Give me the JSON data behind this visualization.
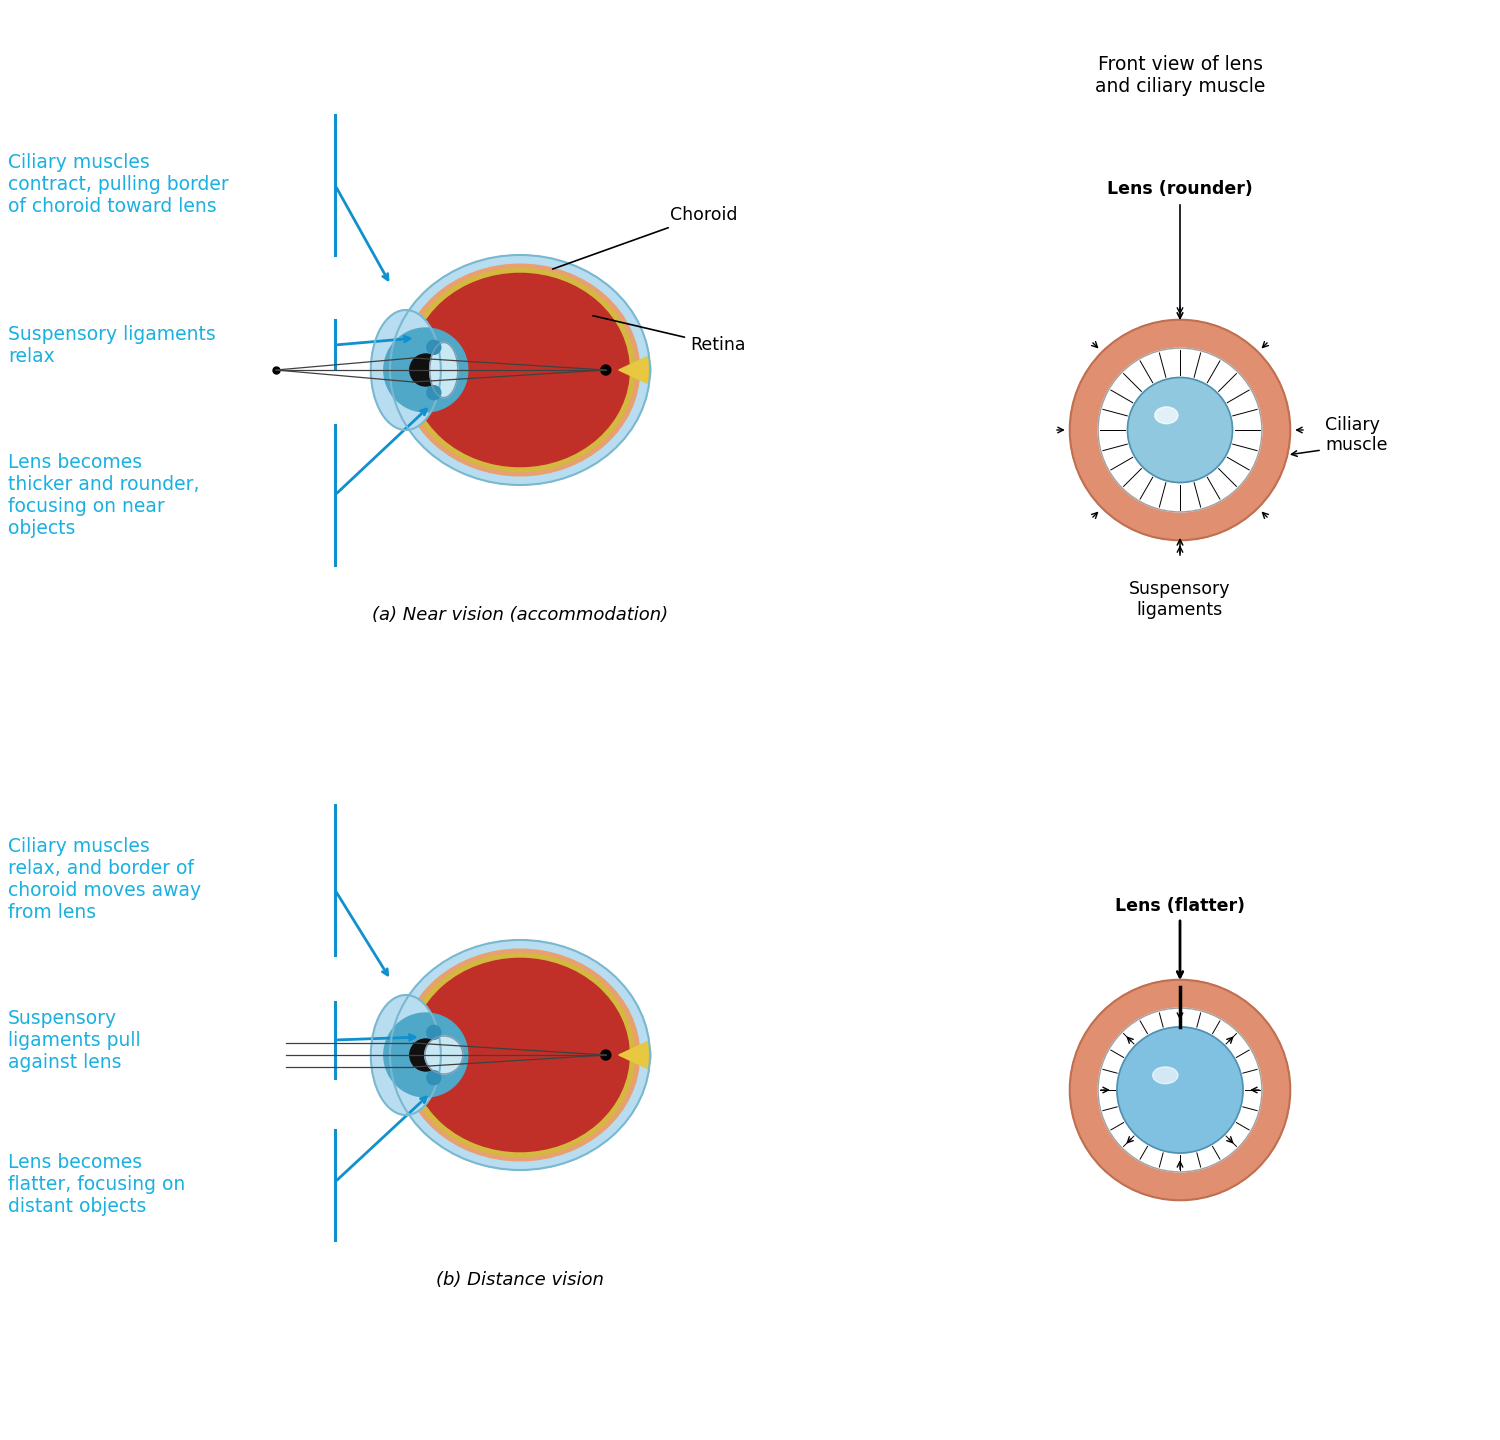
{
  "bg_color": "#ffffff",
  "cyan_text_color": "#1ab0e0",
  "sclera_color": "#b8ddf0",
  "choroid_ring_color": "#e8a070",
  "retina_color": "#c03028",
  "vitreous_color": "#c03028",
  "optic_nerve_color": "#e8c840",
  "iris_color": "#50a8c8",
  "lens_color_near": "#90c8e0",
  "lens_color_dist": "#80c0e0",
  "lens_highlight": "#d8f0f8",
  "ciliary_ring_color": "#e09070",
  "suspensory_white": "#f0f0f0",
  "arrow_blue": "#1090cc",
  "arrow_black": "#222222",
  "top_label": "Front view of lens\nand ciliary muscle",
  "near_label": "(a) Near vision (accommodation)",
  "dist_label": "(b) Distance vision",
  "near_lens_label": "Lens (rounder)",
  "dist_lens_label": "Lens (flatter)",
  "ciliary_label": "Ciliary\nmuscle",
  "suspensory_label": "Suspensory\nligaments",
  "choroid_label": "Choroid",
  "retina_label": "Retina",
  "near_text1": "Ciliary muscles\ncontract, pulling border\nof choroid toward lens",
  "near_text2": "Suspensory ligaments\nrelax",
  "near_text3": "Lens becomes\nthicker and rounder,\nfocusing on near\nobjects",
  "dist_text1": "Ciliary muscles\nrelax, and border of\nchoroid moves away\nfrom lens",
  "dist_text2": "Suspensory\nligaments pull\nagainst lens",
  "dist_text3": "Lens becomes\nflatter, focusing on\ndistant objects"
}
